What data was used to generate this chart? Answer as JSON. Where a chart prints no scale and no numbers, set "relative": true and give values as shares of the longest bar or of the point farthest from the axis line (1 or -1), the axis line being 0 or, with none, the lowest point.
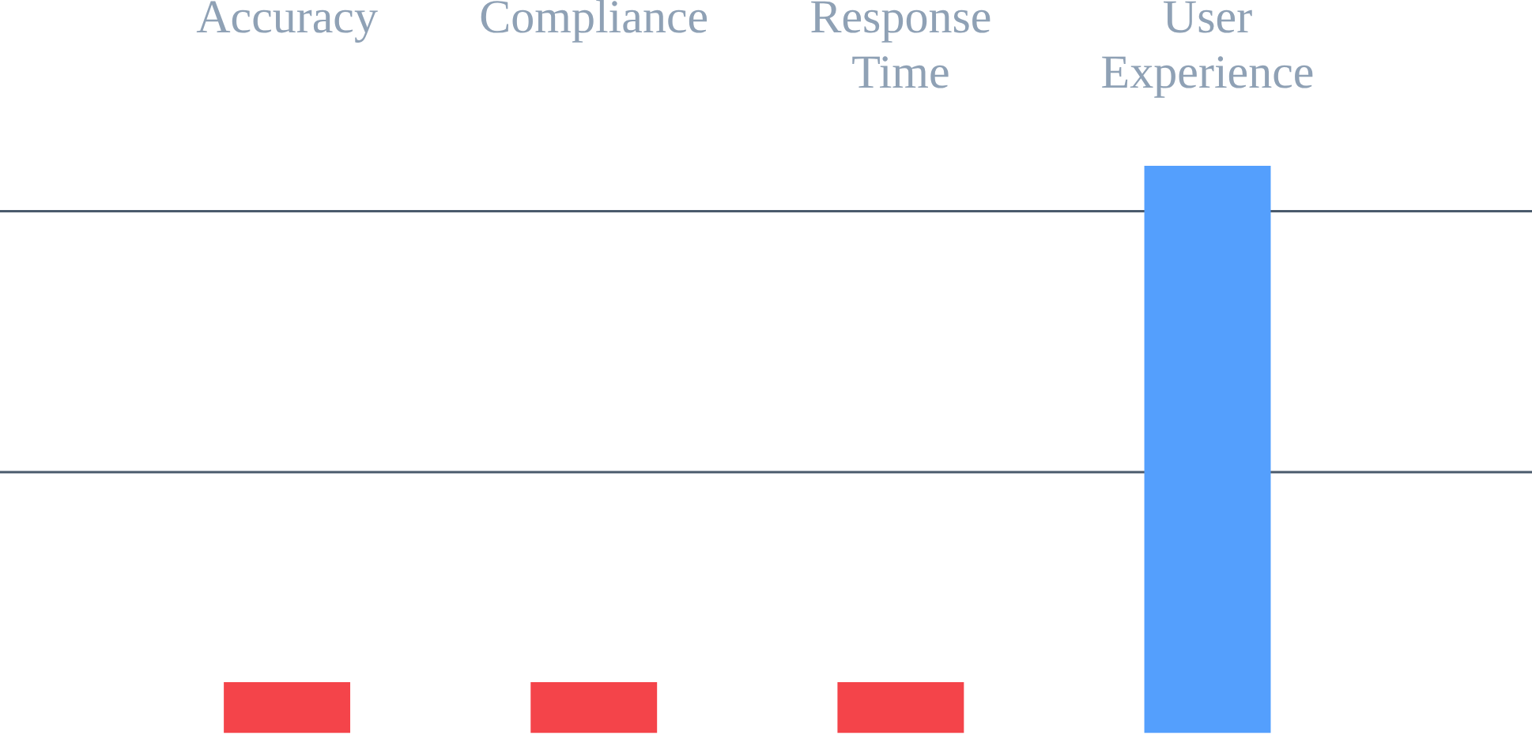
{
  "chart_data": {
    "type": "bar",
    "categories": [
      "Accuracy",
      "Compliance",
      "Response Time",
      "User Experience"
    ],
    "values": [
      0.09,
      0.09,
      0.09,
      1
    ],
    "colors": [
      "#f4444a",
      "#f4444a",
      "#f4444a",
      "#549ffd"
    ],
    "relative": true,
    "ref_lines": [
      {
        "axis": "y",
        "value": 0.46,
        "color": "#4a5a6c"
      },
      {
        "axis": "y",
        "value": 0.92,
        "color": "#4a5a6c"
      }
    ],
    "legend": false,
    "tick_labels": "x"
  }
}
